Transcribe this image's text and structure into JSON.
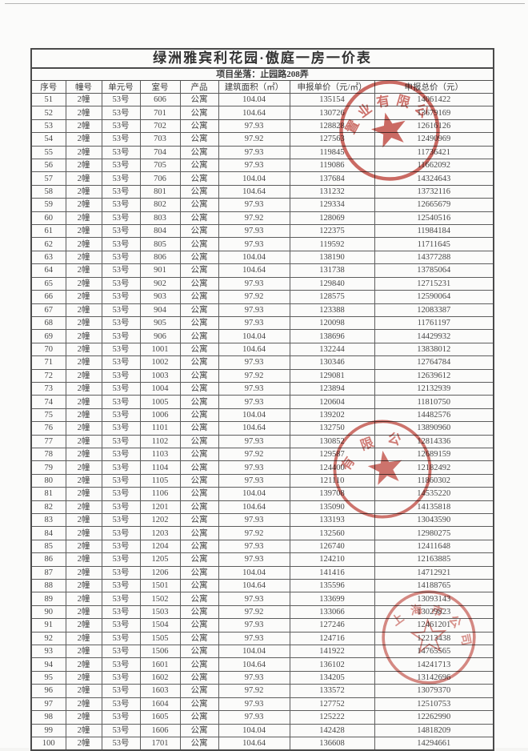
{
  "page": {
    "title": "绿洲雅宾利花园·傲庭一房一价表",
    "subtitle": "项目坐落：止园路208弄"
  },
  "table": {
    "headers": [
      "序号",
      "幢号",
      "单元号",
      "室号",
      "产品",
      "建筑面积（㎡）",
      "申报单价（元/㎡）",
      "申报总价（元）"
    ],
    "rows": [
      [
        "51",
        "2幢",
        "53号",
        "606",
        "公寓",
        "104.04",
        "135154",
        "14061422"
      ],
      [
        "52",
        "2幢",
        "53号",
        "701",
        "公寓",
        "104.64",
        "130726",
        "13679169"
      ],
      [
        "53",
        "2幢",
        "53号",
        "702",
        "公寓",
        "97.93",
        "128828",
        "12616126"
      ],
      [
        "54",
        "2幢",
        "53号",
        "703",
        "公寓",
        "97.92",
        "127563",
        "12490969"
      ],
      [
        "55",
        "2幢",
        "53号",
        "704",
        "公寓",
        "97.93",
        "119845",
        "11736421"
      ],
      [
        "56",
        "2幢",
        "53号",
        "705",
        "公寓",
        "97.93",
        "119086",
        "11662092"
      ],
      [
        "57",
        "2幢",
        "53号",
        "706",
        "公寓",
        "104.04",
        "137684",
        "14324643"
      ],
      [
        "58",
        "2幢",
        "53号",
        "801",
        "公寓",
        "104.64",
        "131232",
        "13732116"
      ],
      [
        "59",
        "2幢",
        "53号",
        "802",
        "公寓",
        "97.93",
        "129334",
        "12665679"
      ],
      [
        "60",
        "2幢",
        "53号",
        "803",
        "公寓",
        "97.92",
        "128069",
        "12540516"
      ],
      [
        "61",
        "2幢",
        "53号",
        "804",
        "公寓",
        "97.93",
        "122375",
        "11984184"
      ],
      [
        "62",
        "2幢",
        "53号",
        "805",
        "公寓",
        "97.93",
        "119592",
        "11711645"
      ],
      [
        "63",
        "2幢",
        "53号",
        "806",
        "公寓",
        "104.04",
        "138190",
        "14377288"
      ],
      [
        "64",
        "2幢",
        "53号",
        "901",
        "公寓",
        "104.64",
        "131738",
        "13785064"
      ],
      [
        "65",
        "2幢",
        "53号",
        "902",
        "公寓",
        "97.93",
        "129840",
        "12715231"
      ],
      [
        "66",
        "2幢",
        "53号",
        "903",
        "公寓",
        "97.92",
        "128575",
        "12590064"
      ],
      [
        "67",
        "2幢",
        "53号",
        "904",
        "公寓",
        "97.93",
        "123388",
        "12083387"
      ],
      [
        "68",
        "2幢",
        "53号",
        "905",
        "公寓",
        "97.93",
        "120098",
        "11761197"
      ],
      [
        "69",
        "2幢",
        "53号",
        "906",
        "公寓",
        "104.04",
        "138696",
        "14429932"
      ],
      [
        "70",
        "2幢",
        "53号",
        "1001",
        "公寓",
        "104.64",
        "132244",
        "13838012"
      ],
      [
        "71",
        "2幢",
        "53号",
        "1002",
        "公寓",
        "97.93",
        "130346",
        "12764784"
      ],
      [
        "72",
        "2幢",
        "53号",
        "1003",
        "公寓",
        "97.92",
        "129081",
        "12639612"
      ],
      [
        "73",
        "2幢",
        "53号",
        "1004",
        "公寓",
        "97.93",
        "123894",
        "12132939"
      ],
      [
        "74",
        "2幢",
        "53号",
        "1005",
        "公寓",
        "97.93",
        "120604",
        "11810750"
      ],
      [
        "75",
        "2幢",
        "53号",
        "1006",
        "公寓",
        "104.04",
        "139202",
        "14482576"
      ],
      [
        "76",
        "2幢",
        "53号",
        "1101",
        "公寓",
        "104.64",
        "132750",
        "13890960"
      ],
      [
        "77",
        "2幢",
        "53号",
        "1102",
        "公寓",
        "97.93",
        "130852",
        "12814336"
      ],
      [
        "78",
        "2幢",
        "53号",
        "1103",
        "公寓",
        "97.92",
        "129587",
        "12689159"
      ],
      [
        "79",
        "2幢",
        "53号",
        "1104",
        "公寓",
        "97.93",
        "124400",
        "12182492"
      ],
      [
        "80",
        "2幢",
        "53号",
        "1105",
        "公寓",
        "97.93",
        "121110",
        "11860302"
      ],
      [
        "81",
        "2幢",
        "53号",
        "1106",
        "公寓",
        "104.04",
        "139708",
        "14535220"
      ],
      [
        "82",
        "2幢",
        "53号",
        "1201",
        "公寓",
        "104.64",
        "135090",
        "14135818"
      ],
      [
        "83",
        "2幢",
        "53号",
        "1202",
        "公寓",
        "97.93",
        "133193",
        "13043590"
      ],
      [
        "84",
        "2幢",
        "53号",
        "1203",
        "公寓",
        "97.92",
        "132560",
        "12980275"
      ],
      [
        "85",
        "2幢",
        "53号",
        "1204",
        "公寓",
        "97.93",
        "126740",
        "12411648"
      ],
      [
        "86",
        "2幢",
        "53号",
        "1205",
        "公寓",
        "97.93",
        "124210",
        "12163885"
      ],
      [
        "87",
        "2幢",
        "53号",
        "1206",
        "公寓",
        "104.04",
        "141416",
        "14712921"
      ],
      [
        "88",
        "2幢",
        "53号",
        "1501",
        "公寓",
        "104.64",
        "135596",
        "14188765"
      ],
      [
        "89",
        "2幢",
        "53号",
        "1502",
        "公寓",
        "97.93",
        "133699",
        "13093143"
      ],
      [
        "90",
        "2幢",
        "53号",
        "1503",
        "公寓",
        "97.92",
        "133066",
        "13029823"
      ],
      [
        "91",
        "2幢",
        "53号",
        "1504",
        "公寓",
        "97.93",
        "127246",
        "12461201"
      ],
      [
        "92",
        "2幢",
        "53号",
        "1505",
        "公寓",
        "97.93",
        "124716",
        "12213438"
      ],
      [
        "93",
        "2幢",
        "53号",
        "1506",
        "公寓",
        "104.04",
        "141922",
        "14765565"
      ],
      [
        "94",
        "2幢",
        "53号",
        "1601",
        "公寓",
        "104.64",
        "136102",
        "14241713"
      ],
      [
        "95",
        "2幢",
        "53号",
        "1602",
        "公寓",
        "97.93",
        "134205",
        "13142696"
      ],
      [
        "96",
        "2幢",
        "53号",
        "1603",
        "公寓",
        "97.92",
        "133572",
        "13079370"
      ],
      [
        "97",
        "2幢",
        "53号",
        "1604",
        "公寓",
        "97.93",
        "127752",
        "12510753"
      ],
      [
        "98",
        "2幢",
        "53号",
        "1605",
        "公寓",
        "97.93",
        "125222",
        "12262990"
      ],
      [
        "99",
        "2幢",
        "53号",
        "1606",
        "公寓",
        "104.04",
        "142428",
        "14818209"
      ],
      [
        "100",
        "2幢",
        "53号",
        "1701",
        "公寓",
        "104.64",
        "136608",
        "14294661"
      ]
    ]
  },
  "stamps": [
    {
      "arc_text": "置业有限公司"
    },
    {
      "arc_text": "有限公司"
    },
    {
      "arc_text": "上海市公司"
    }
  ],
  "colors": {
    "stamp_red": "#c5524a",
    "ink": "#3f3f3f",
    "paper": "#fbfbfa"
  }
}
